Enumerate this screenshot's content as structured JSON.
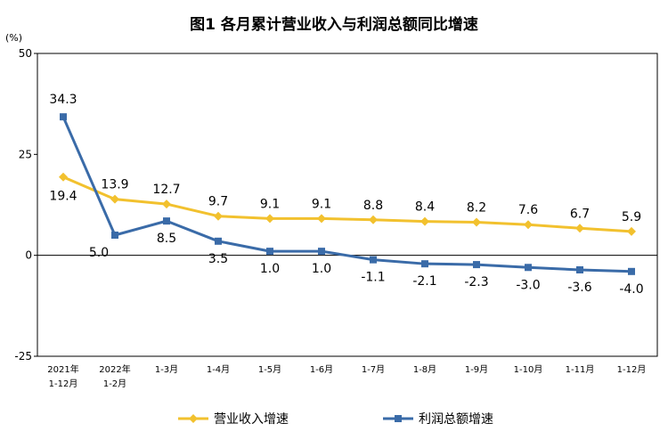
{
  "chart_data": {
    "type": "line",
    "title": "图1 各月累计营业收入与利润总额同比增速",
    "unit_label": "(%)",
    "ylim": [
      -25,
      50
    ],
    "yticks": [
      50,
      25,
      0,
      -25
    ],
    "grid": false,
    "legend_position": "bottom",
    "categories": [
      [
        "2021年",
        "1-12月"
      ],
      [
        "2022年",
        "1-2月"
      ],
      [
        "1-3月"
      ],
      [
        "1-4月"
      ],
      [
        "1-5月"
      ],
      [
        "1-6月"
      ],
      [
        "1-7月"
      ],
      [
        "1-8月"
      ],
      [
        "1-9月"
      ],
      [
        "1-10月"
      ],
      [
        "1-11月"
      ],
      [
        "1-12月"
      ]
    ],
    "series": [
      {
        "name": "营业收入增速",
        "color": "#F2C12E",
        "marker": "diamond",
        "values": [
          19.4,
          13.9,
          12.7,
          9.7,
          9.1,
          9.1,
          8.8,
          8.4,
          8.2,
          7.6,
          6.7,
          5.9
        ],
        "labels": [
          "19.4",
          "13.9",
          "12.7",
          "9.7",
          "9.1",
          "9.1",
          "8.8",
          "8.4",
          "8.2",
          "7.6",
          "6.7",
          "5.9"
        ]
      },
      {
        "name": "利润总额增速",
        "color": "#3A6BA8",
        "marker": "square",
        "values": [
          34.3,
          5.0,
          8.5,
          3.5,
          1.0,
          1.0,
          -1.1,
          -2.1,
          -2.3,
          -3.0,
          -3.6,
          -4.0
        ],
        "labels": [
          "34.3",
          "5.0",
          "8.5",
          "3.5",
          "1.0",
          "1.0",
          "-1.1",
          "-2.1",
          "-2.3",
          "-3.0",
          "-3.6",
          "-4.0"
        ]
      }
    ]
  }
}
